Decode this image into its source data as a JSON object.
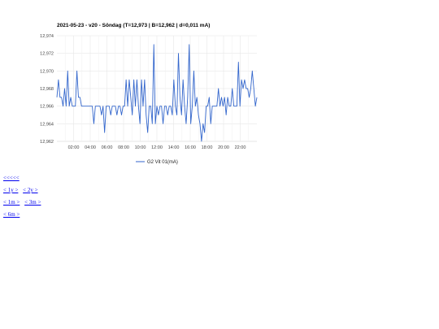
{
  "chart_data": {
    "type": "line",
    "title": "2021-05-23 - v20 - Söndag (T=12,973 | B=12,962 | d=0,011 mA)",
    "xlabel": "",
    "ylabel": "",
    "x_range": [
      "00:00",
      "24:00"
    ],
    "ylim": [
      12.962,
      12.974
    ],
    "x_ticks": [
      "02:00",
      "04:00",
      "06:00",
      "08:00",
      "10:00",
      "12:00",
      "14:00",
      "16:00",
      "18:00",
      "20:00",
      "22:00"
    ],
    "y_ticks": [
      "12,962",
      "12,964",
      "12,966",
      "12,968",
      "12,970",
      "12,972",
      "12,974"
    ],
    "grid": true,
    "legend_position": "bottom",
    "series": [
      {
        "name": "G2 Vit 01(mA)",
        "color": "#3366cc",
        "values": [
          12.967,
          12.969,
          12.967,
          12.967,
          12.966,
          12.968,
          12.966,
          12.97,
          12.966,
          12.967,
          12.966,
          12.966,
          12.966,
          12.97,
          12.967,
          12.967,
          12.966,
          12.966,
          12.966,
          12.966,
          12.966,
          12.966,
          12.966,
          12.966,
          12.964,
          12.966,
          12.966,
          12.966,
          12.966,
          12.965,
          12.966,
          12.963,
          12.966,
          12.966,
          12.966,
          12.965,
          12.966,
          12.966,
          12.966,
          12.965,
          12.966,
          12.966,
          12.965,
          12.966,
          12.966,
          12.969,
          12.966,
          12.969,
          12.967,
          12.965,
          12.969,
          12.966,
          12.969,
          12.966,
          12.964,
          12.969,
          12.966,
          12.969,
          12.965,
          12.963,
          12.966,
          12.966,
          12.964,
          12.973,
          12.964,
          12.966,
          12.965,
          12.966,
          12.966,
          12.964,
          12.966,
          12.966,
          12.965,
          12.966,
          12.966,
          12.965,
          12.969,
          12.966,
          12.965,
          12.972,
          12.967,
          12.965,
          12.969,
          12.966,
          12.964,
          12.967,
          12.973,
          12.964,
          12.966,
          12.97,
          12.966,
          12.967,
          12.965,
          12.964,
          12.962,
          12.964,
          12.963,
          12.966,
          12.966,
          12.967,
          12.964,
          12.966,
          12.966,
          12.966,
          12.966,
          12.968,
          12.966,
          12.967,
          12.966,
          12.967,
          12.965,
          12.967,
          12.966,
          12.966,
          12.968,
          12.966,
          12.966,
          12.966,
          12.971,
          12.966,
          12.969,
          12.968,
          12.969,
          12.968,
          12.968,
          12.967,
          12.968,
          12.97,
          12.968,
          12.966,
          12.967
        ]
      }
    ]
  },
  "nav": {
    "back5": "<<<<<",
    "back1y": "< 1y >",
    "back2y": "< 2y >",
    "back1m": "< 1m >",
    "back3m": "< 3m >",
    "back6m": "< 6m >"
  }
}
